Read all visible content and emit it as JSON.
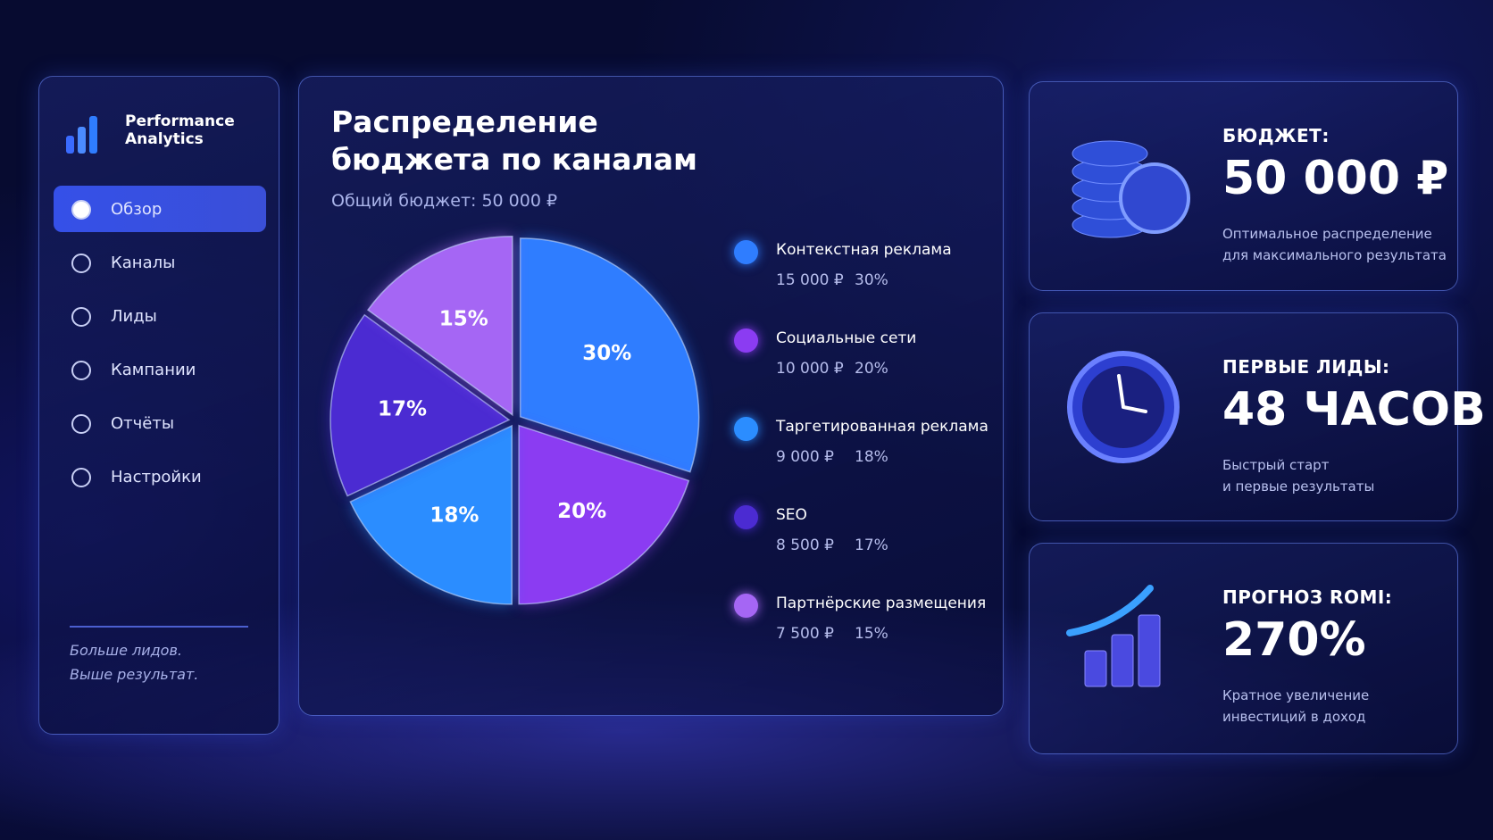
{
  "sidebar": {
    "brand": "Performance Analytics",
    "nav": [
      "Обзор",
      "Каналы",
      "Лиды",
      "Кампании",
      "Отчёты",
      "Настройки"
    ],
    "tagline": [
      "Больше лидов.",
      "Выше результат."
    ]
  },
  "chart_data": {
    "type": "pie",
    "title": "Распределение бюджета по каналам",
    "subtitle": "Общий бюджет: 50 000 ₽",
    "categories": [
      "Контекстная реклама",
      "Социальные сети",
      "Таргетированная реклама",
      "SEO",
      "Партнёрские размещения"
    ],
    "values": [
      30,
      20,
      18,
      17,
      15
    ],
    "value_labels": [
      "30%",
      "20%",
      "18%",
      "17%",
      "15%"
    ],
    "legend_amounts": [
      "15 000 ₽",
      "10 000 ₽",
      "9 000 ₽",
      "8 500 ₽",
      "7 500 ₽"
    ],
    "colors": [
      "#2f7dff",
      "#8b3cf2",
      "#2b8dff",
      "#4b2bd2",
      "#a566f4"
    ]
  },
  "cards": [
    {
      "label": "БЮДЖЕТ:",
      "value": "50 000 ₽",
      "note": [
        "Оптимальное распределение",
        "для максимального результата"
      ]
    },
    {
      "label": "ПЕРВЫЕ ЛИДЫ:",
      "value": "48 ЧАСОВ",
      "note": [
        "Быстрый старт",
        "и первые результаты"
      ]
    },
    {
      "label": "ПРОГНОЗ ROMI:",
      "value": "270%",
      "note": [
        "Кратное увеличение",
        "инвестиций в доход"
      ]
    }
  ]
}
